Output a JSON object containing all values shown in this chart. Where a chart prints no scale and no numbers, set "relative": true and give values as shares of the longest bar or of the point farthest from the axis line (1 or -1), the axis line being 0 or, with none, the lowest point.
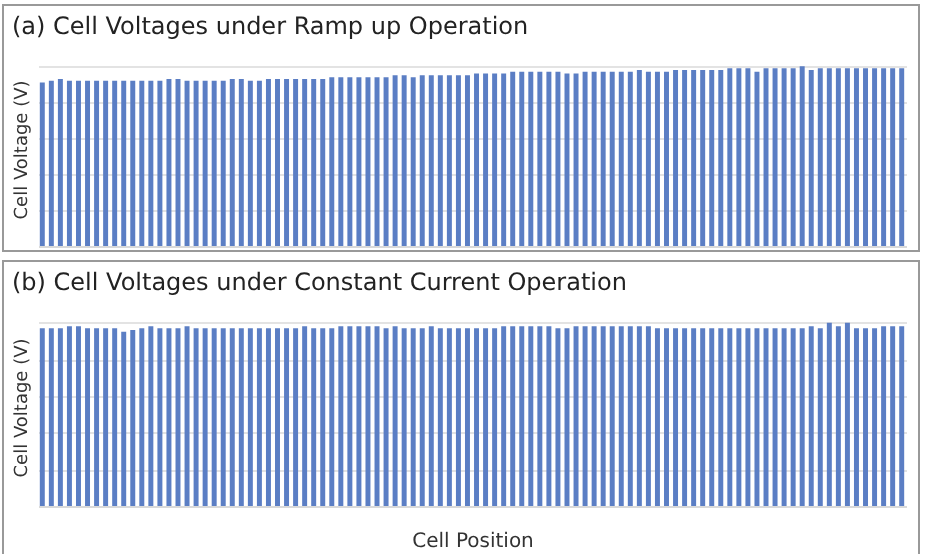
{
  "chart_data": [
    {
      "type": "bar",
      "title": "(a) Cell Voltages under Ramp up Operation",
      "ylabel": "Cell Voltage (V)",
      "relative": true,
      "grid": "y",
      "color": "#5b7ec4",
      "tick_labels": false,
      "categories": [
        null,
        null,
        null,
        null,
        null,
        null,
        null,
        null,
        null,
        null,
        null,
        null,
        null,
        null,
        null,
        null,
        null,
        null,
        null,
        null,
        null,
        null,
        null,
        null,
        null,
        null,
        null,
        null,
        null,
        null,
        null,
        null,
        null,
        null,
        null,
        null,
        null,
        null,
        null,
        null,
        null,
        null,
        null,
        null,
        null,
        null,
        null,
        null,
        null,
        null,
        null,
        null,
        null,
        null,
        null,
        null,
        null,
        null,
        null,
        null,
        null,
        null,
        null,
        null,
        null,
        null,
        null,
        null,
        null,
        null,
        null,
        null,
        null,
        null,
        null,
        null,
        null,
        null,
        null,
        null,
        null,
        null,
        null,
        null,
        null,
        null,
        null,
        null,
        null,
        null,
        null,
        null,
        null,
        null,
        null,
        null
      ],
      "values": [
        0.91,
        0.92,
        0.93,
        0.92,
        0.92,
        0.92,
        0.92,
        0.92,
        0.92,
        0.92,
        0.92,
        0.92,
        0.92,
        0.92,
        0.93,
        0.93,
        0.92,
        0.92,
        0.92,
        0.92,
        0.92,
        0.93,
        0.93,
        0.92,
        0.92,
        0.93,
        0.93,
        0.93,
        0.93,
        0.93,
        0.93,
        0.93,
        0.94,
        0.94,
        0.94,
        0.94,
        0.94,
        0.94,
        0.94,
        0.95,
        0.95,
        0.94,
        0.95,
        0.95,
        0.95,
        0.95,
        0.95,
        0.95,
        0.96,
        0.96,
        0.96,
        0.96,
        0.97,
        0.97,
        0.97,
        0.97,
        0.97,
        0.97,
        0.96,
        0.96,
        0.97,
        0.97,
        0.97,
        0.97,
        0.97,
        0.97,
        0.98,
        0.97,
        0.97,
        0.97,
        0.98,
        0.98,
        0.98,
        0.98,
        0.98,
        0.98,
        0.99,
        0.99,
        0.99,
        0.97,
        0.99,
        0.99,
        0.99,
        0.99,
        1,
        0.98,
        0.99,
        0.99,
        0.99,
        0.99,
        0.99,
        0.99,
        0.99,
        0.99,
        0.99,
        0.99
      ]
    },
    {
      "type": "bar",
      "title": "(b) Cell Voltages under Constant Current Operation",
      "ylabel": "Cell Voltage (V)",
      "xlabel": "Cell Position",
      "relative": true,
      "grid": "y",
      "color": "#5b7ec4",
      "tick_labels": false,
      "categories": [
        null,
        null,
        null,
        null,
        null,
        null,
        null,
        null,
        null,
        null,
        null,
        null,
        null,
        null,
        null,
        null,
        null,
        null,
        null,
        null,
        null,
        null,
        null,
        null,
        null,
        null,
        null,
        null,
        null,
        null,
        null,
        null,
        null,
        null,
        null,
        null,
        null,
        null,
        null,
        null,
        null,
        null,
        null,
        null,
        null,
        null,
        null,
        null,
        null,
        null,
        null,
        null,
        null,
        null,
        null,
        null,
        null,
        null,
        null,
        null,
        null,
        null,
        null,
        null,
        null,
        null,
        null,
        null,
        null,
        null,
        null,
        null,
        null,
        null,
        null,
        null,
        null,
        null,
        null,
        null,
        null,
        null,
        null,
        null,
        null,
        null,
        null,
        null,
        null,
        null,
        null,
        null,
        null,
        null,
        null,
        null
      ],
      "values": [
        0.97,
        0.97,
        0.97,
        0.98,
        0.98,
        0.97,
        0.97,
        0.97,
        0.97,
        0.95,
        0.96,
        0.97,
        0.98,
        0.97,
        0.97,
        0.97,
        0.98,
        0.97,
        0.97,
        0.97,
        0.97,
        0.97,
        0.97,
        0.97,
        0.97,
        0.97,
        0.97,
        0.97,
        0.97,
        0.98,
        0.97,
        0.97,
        0.97,
        0.98,
        0.98,
        0.98,
        0.98,
        0.98,
        0.97,
        0.98,
        0.97,
        0.97,
        0.97,
        0.98,
        0.97,
        0.97,
        0.97,
        0.97,
        0.97,
        0.97,
        0.97,
        0.98,
        0.98,
        0.98,
        0.98,
        0.98,
        0.98,
        0.97,
        0.97,
        0.98,
        0.98,
        0.98,
        0.98,
        0.98,
        0.98,
        0.98,
        0.98,
        0.98,
        0.97,
        0.97,
        0.97,
        0.97,
        0.97,
        0.97,
        0.97,
        0.97,
        0.97,
        0.97,
        0.97,
        0.97,
        0.97,
        0.97,
        0.97,
        0.97,
        0.97,
        0.98,
        0.97,
        1,
        0.98,
        1,
        0.97,
        0.97,
        0.97,
        0.98,
        0.98,
        0.98
      ]
    }
  ]
}
